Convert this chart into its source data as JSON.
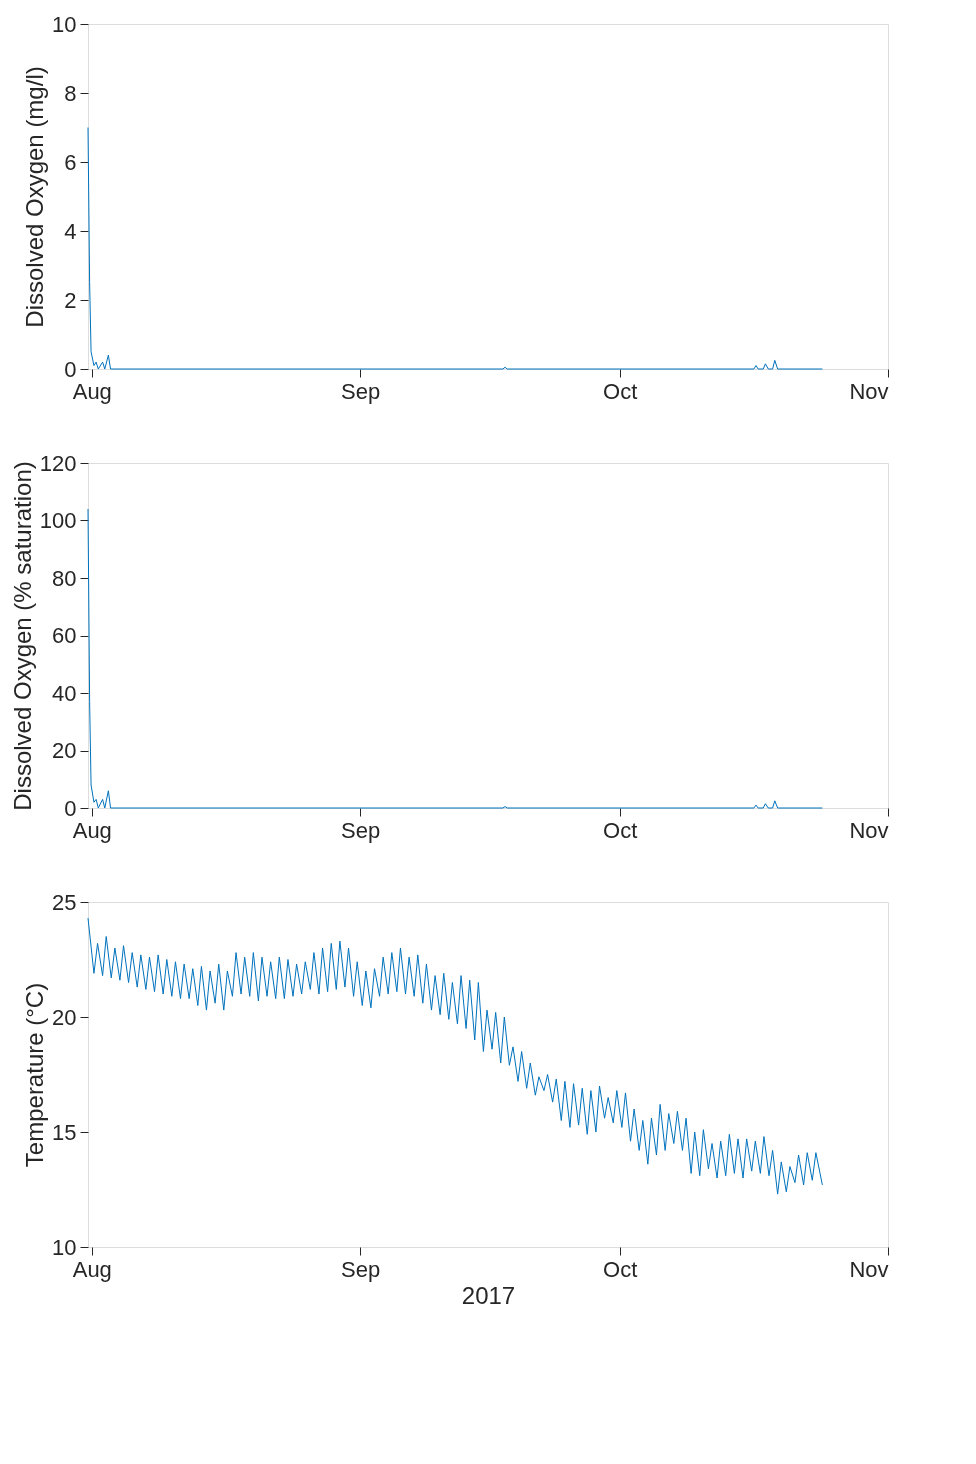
{
  "chart_data": [
    {
      "type": "line",
      "ylabel": "Dissolved Oxygen (mg/l)",
      "xlim": [
        "2017-07-31T13:30",
        "2017-11-01"
      ],
      "xticks": [
        {
          "value": "2017-08-01",
          "label": "Aug"
        },
        {
          "value": "2017-09-01",
          "label": "Sep"
        },
        {
          "value": "2017-10-01",
          "label": "Oct"
        },
        {
          "value": "2017-11-01",
          "label": "Nov"
        }
      ],
      "ylim": [
        0,
        10
      ],
      "yticks": [
        0,
        2,
        4,
        6,
        8,
        10
      ],
      "grid": false,
      "x": [
        "2017-07-31T13:30",
        "2017-07-31T18:00",
        "2017-07-31T22:00",
        "2017-08-01T06:00",
        "2017-08-01T12:00",
        "2017-08-01T18:00",
        "2017-08-02T06:00",
        "2017-08-02T12:00",
        "2017-08-02T22:00",
        "2017-08-03T04:00",
        "2017-09-17T12:00",
        "2017-09-17T18:00",
        "2017-09-18T00:00",
        "2017-10-16T12:00",
        "2017-10-16T18:00",
        "2017-10-17T00:00",
        "2017-10-17T14:00",
        "2017-10-17T20:00",
        "2017-10-18T04:00",
        "2017-10-18T16:00",
        "2017-10-18T22:00",
        "2017-10-19T06:00",
        "2017-10-24T10:00"
      ],
      "series": [
        {
          "color": "#0072bd",
          "values": [
            7.0,
            2.5,
            0.5,
            0.1,
            0.2,
            0.0,
            0.2,
            0.0,
            0.4,
            0.0,
            0.0,
            0.05,
            0.0,
            0.0,
            0.1,
            0.0,
            0.0,
            0.15,
            0.0,
            0.0,
            0.25,
            0.0,
            0.0
          ]
        }
      ]
    },
    {
      "type": "line",
      "ylabel": "Dissolved Oxygen (% saturation)",
      "xlim": [
        "2017-07-31T13:30",
        "2017-11-01"
      ],
      "xticks": [
        {
          "value": "2017-08-01",
          "label": "Aug"
        },
        {
          "value": "2017-09-01",
          "label": "Sep"
        },
        {
          "value": "2017-10-01",
          "label": "Oct"
        },
        {
          "value": "2017-11-01",
          "label": "Nov"
        }
      ],
      "ylim": [
        0,
        120
      ],
      "yticks": [
        0,
        20,
        40,
        60,
        80,
        100,
        120
      ],
      "grid": false,
      "x": [
        "2017-07-31T13:30",
        "2017-07-31T18:00",
        "2017-07-31T22:00",
        "2017-08-01T06:00",
        "2017-08-01T12:00",
        "2017-08-01T18:00",
        "2017-08-02T06:00",
        "2017-08-02T12:00",
        "2017-08-02T22:00",
        "2017-08-03T04:00",
        "2017-09-17T12:00",
        "2017-09-17T18:00",
        "2017-09-18T00:00",
        "2017-10-16T12:00",
        "2017-10-16T18:00",
        "2017-10-17T00:00",
        "2017-10-17T14:00",
        "2017-10-17T20:00",
        "2017-10-18T04:00",
        "2017-10-18T16:00",
        "2017-10-18T22:00",
        "2017-10-19T06:00",
        "2017-10-24T10:00"
      ],
      "series": [
        {
          "color": "#0072bd",
          "values": [
            104,
            37,
            8,
            2,
            3,
            0,
            3,
            0,
            6,
            0,
            0,
            0.5,
            0,
            0,
            1,
            0,
            0,
            1.5,
            0,
            0,
            2.5,
            0,
            0
          ]
        }
      ]
    },
    {
      "type": "line",
      "ylabel": "Temperature (°C)",
      "xlabel": "2017",
      "xlim": [
        "2017-07-31T13:30",
        "2017-11-01"
      ],
      "xticks": [
        {
          "value": "2017-08-01",
          "label": "Aug"
        },
        {
          "value": "2017-09-01",
          "label": "Sep"
        },
        {
          "value": "2017-10-01",
          "label": "Oct"
        },
        {
          "value": "2017-11-01",
          "label": "Nov"
        }
      ],
      "ylim": [
        10,
        25
      ],
      "yticks": [
        10,
        15,
        20,
        25
      ],
      "grid": false,
      "x": [
        "2017-07-31T13:30",
        "2017-08-01T06:00",
        "2017-08-01T16:00",
        "2017-08-02T06:00",
        "2017-08-02T16:00",
        "2017-08-03T06:00",
        "2017-08-03T16:00",
        "2017-08-04T06:00",
        "2017-08-04T16:00",
        "2017-08-05T06:00",
        "2017-08-05T16:00",
        "2017-08-06T06:00",
        "2017-08-06T16:00",
        "2017-08-07T06:00",
        "2017-08-07T16:00",
        "2017-08-08T06:00",
        "2017-08-08T16:00",
        "2017-08-09T06:00",
        "2017-08-09T16:00",
        "2017-08-10T06:00",
        "2017-08-10T16:00",
        "2017-08-11T06:00",
        "2017-08-11T16:00",
        "2017-08-12T06:00",
        "2017-08-12T16:00",
        "2017-08-13T06:00",
        "2017-08-13T16:00",
        "2017-08-14T06:00",
        "2017-08-14T16:00",
        "2017-08-15T06:00",
        "2017-08-15T16:00",
        "2017-08-16T06:00",
        "2017-08-16T16:00",
        "2017-08-17T06:00",
        "2017-08-17T16:00",
        "2017-08-18T06:00",
        "2017-08-18T16:00",
        "2017-08-19T06:00",
        "2017-08-19T16:00",
        "2017-08-20T06:00",
        "2017-08-20T16:00",
        "2017-08-21T06:00",
        "2017-08-21T16:00",
        "2017-08-22T06:00",
        "2017-08-22T16:00",
        "2017-08-23T06:00",
        "2017-08-23T16:00",
        "2017-08-24T06:00",
        "2017-08-24T16:00",
        "2017-08-25T06:00",
        "2017-08-25T16:00",
        "2017-08-26T06:00",
        "2017-08-26T16:00",
        "2017-08-27T06:00",
        "2017-08-27T16:00",
        "2017-08-28T06:00",
        "2017-08-28T16:00",
        "2017-08-29T06:00",
        "2017-08-29T16:00",
        "2017-08-30T06:00",
        "2017-08-30T16:00",
        "2017-08-31T06:00",
        "2017-08-31T16:00",
        "2017-09-01T06:00",
        "2017-09-01T16:00",
        "2017-09-02T06:00",
        "2017-09-02T16:00",
        "2017-09-03T06:00",
        "2017-09-03T16:00",
        "2017-09-04T06:00",
        "2017-09-04T16:00",
        "2017-09-05T06:00",
        "2017-09-05T16:00",
        "2017-09-06T06:00",
        "2017-09-06T16:00",
        "2017-09-07T06:00",
        "2017-09-07T16:00",
        "2017-09-08T06:00",
        "2017-09-08T16:00",
        "2017-09-09T06:00",
        "2017-09-09T16:00",
        "2017-09-10T06:00",
        "2017-09-10T16:00",
        "2017-09-11T06:00",
        "2017-09-11T16:00",
        "2017-09-12T06:00",
        "2017-09-12T16:00",
        "2017-09-13T06:00",
        "2017-09-13T16:00",
        "2017-09-14T06:00",
        "2017-09-14T16:00",
        "2017-09-15T06:00",
        "2017-09-15T16:00",
        "2017-09-16T06:00",
        "2017-09-16T16:00",
        "2017-09-17T06:00",
        "2017-09-17T16:00",
        "2017-09-18T06:00",
        "2017-09-18T16:00",
        "2017-09-19T06:00",
        "2017-09-19T16:00",
        "2017-09-20T06:00",
        "2017-09-20T16:00",
        "2017-09-21T06:00",
        "2017-09-21T16:00",
        "2017-09-22T06:00",
        "2017-09-22T16:00",
        "2017-09-23T06:00",
        "2017-09-23T16:00",
        "2017-09-24T06:00",
        "2017-09-24T16:00",
        "2017-09-25T06:00",
        "2017-09-25T16:00",
        "2017-09-26T06:00",
        "2017-09-26T16:00",
        "2017-09-27T06:00",
        "2017-09-27T16:00",
        "2017-09-28T06:00",
        "2017-09-28T16:00",
        "2017-09-29T06:00",
        "2017-09-29T16:00",
        "2017-09-30T06:00",
        "2017-09-30T16:00",
        "2017-10-01T06:00",
        "2017-10-01T16:00",
        "2017-10-02T06:00",
        "2017-10-02T16:00",
        "2017-10-03T06:00",
        "2017-10-03T16:00",
        "2017-10-04T06:00",
        "2017-10-04T16:00",
        "2017-10-05T06:00",
        "2017-10-05T16:00",
        "2017-10-06T06:00",
        "2017-10-06T16:00",
        "2017-10-07T06:00",
        "2017-10-07T16:00",
        "2017-10-08T06:00",
        "2017-10-08T16:00",
        "2017-10-09T06:00",
        "2017-10-09T16:00",
        "2017-10-10T06:00",
        "2017-10-10T16:00",
        "2017-10-11T06:00",
        "2017-10-11T16:00",
        "2017-10-12T06:00",
        "2017-10-12T16:00",
        "2017-10-13T06:00",
        "2017-10-13T16:00",
        "2017-10-14T06:00",
        "2017-10-14T16:00",
        "2017-10-15T06:00",
        "2017-10-15T16:00",
        "2017-10-16T06:00",
        "2017-10-16T16:00",
        "2017-10-17T06:00",
        "2017-10-17T16:00",
        "2017-10-18T06:00",
        "2017-10-18T16:00",
        "2017-10-19T06:00",
        "2017-10-19T16:00",
        "2017-10-20T06:00",
        "2017-10-20T16:00",
        "2017-10-21T06:00",
        "2017-10-21T16:00",
        "2017-10-22T06:00",
        "2017-10-22T16:00",
        "2017-10-23T06:00",
        "2017-10-23T16:00",
        "2017-10-24T10:00"
      ],
      "series": [
        {
          "color": "#0072bd",
          "values": [
            24.3,
            21.9,
            23.2,
            21.8,
            23.5,
            21.7,
            23.0,
            21.6,
            23.1,
            21.5,
            22.8,
            21.3,
            22.7,
            21.2,
            22.6,
            21.1,
            22.7,
            21.0,
            22.5,
            20.9,
            22.4,
            20.8,
            22.3,
            20.8,
            22.1,
            20.5,
            22.2,
            20.3,
            22.0,
            20.6,
            22.3,
            20.3,
            22.0,
            20.9,
            22.8,
            21.0,
            22.6,
            20.9,
            22.8,
            20.7,
            22.6,
            20.9,
            22.4,
            20.8,
            22.6,
            20.8,
            22.5,
            20.9,
            22.3,
            21.0,
            22.4,
            21.2,
            22.8,
            21.0,
            23.0,
            21.1,
            23.2,
            21.2,
            23.3,
            21.3,
            23.0,
            20.9,
            22.4,
            20.5,
            22.0,
            20.4,
            22.1,
            20.9,
            22.6,
            21.0,
            22.8,
            21.1,
            23.0,
            21.0,
            22.6,
            20.9,
            22.7,
            20.6,
            22.3,
            20.3,
            21.8,
            20.1,
            21.9,
            19.9,
            21.5,
            19.7,
            21.8,
            19.5,
            21.6,
            19.0,
            21.5,
            18.5,
            20.3,
            18.6,
            20.2,
            18.0,
            20.0,
            17.9,
            18.7,
            17.2,
            18.5,
            16.9,
            18.0,
            16.6,
            17.4,
            16.8,
            17.5,
            16.3,
            17.3,
            15.5,
            17.2,
            15.2,
            17.1,
            15.3,
            16.9,
            14.9,
            16.8,
            15.0,
            17.0,
            15.6,
            16.5,
            15.4,
            16.8,
            15.2,
            16.7,
            14.6,
            16.0,
            14.2,
            15.5,
            13.6,
            15.6,
            14.0,
            16.2,
            14.2,
            15.8,
            14.5,
            15.9,
            14.2,
            15.6,
            13.2,
            15.0,
            13.1,
            15.1,
            13.4,
            14.5,
            13.0,
            14.6,
            13.1,
            14.9,
            13.2,
            14.7,
            13.0,
            14.7,
            13.3,
            14.6,
            13.2,
            14.8,
            13.1,
            14.2,
            12.3,
            13.7,
            12.4,
            13.5,
            12.8,
            14.0,
            12.7,
            14.1,
            12.9,
            14.1,
            12.7
          ]
        }
      ]
    }
  ]
}
